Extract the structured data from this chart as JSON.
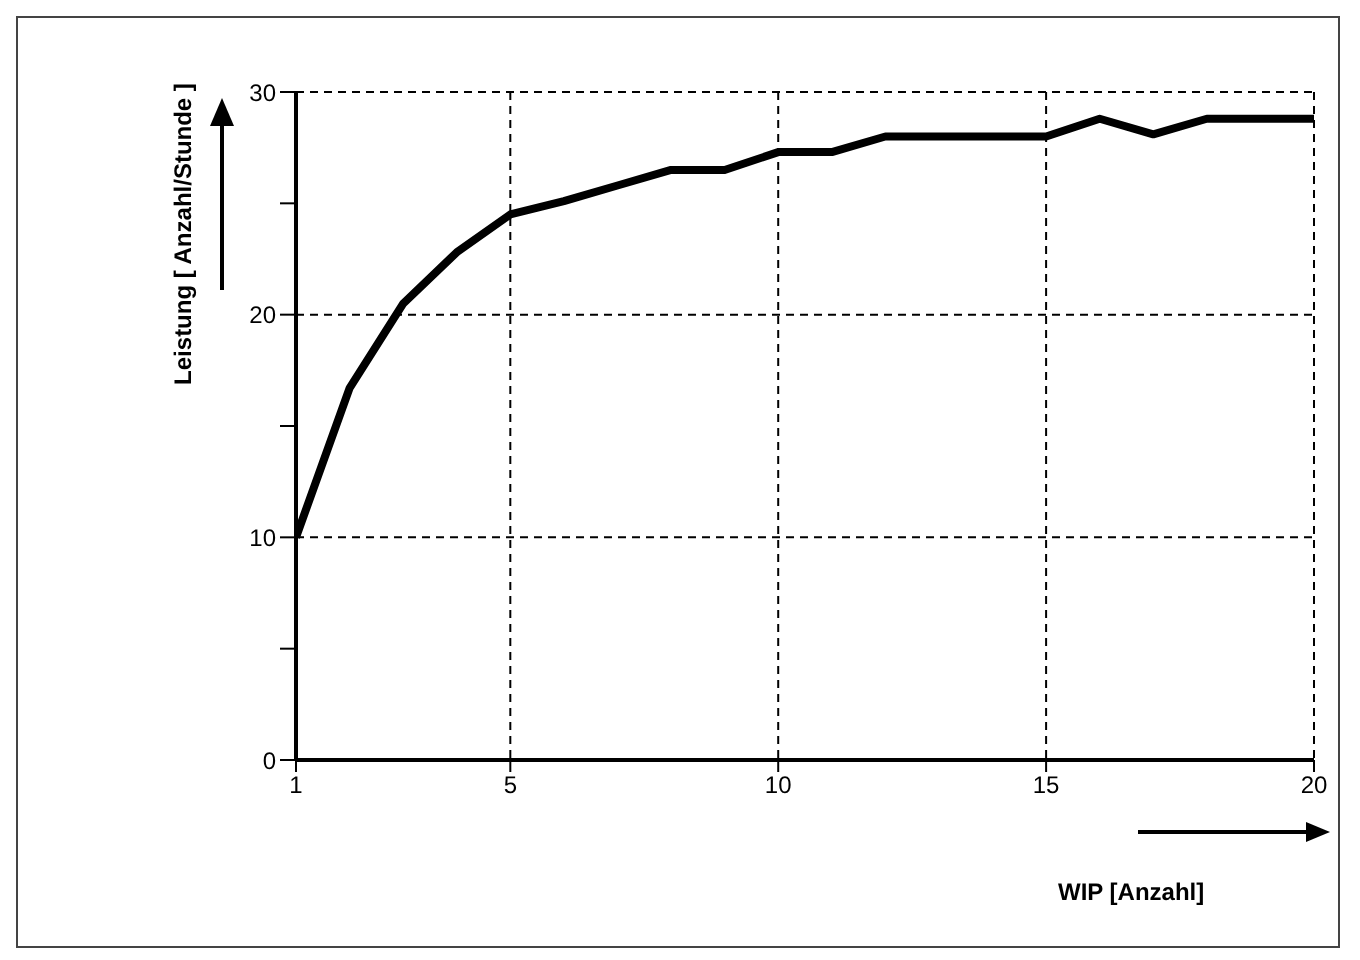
{
  "chart_data": {
    "type": "line",
    "xlabel": "WIP [Anzahl]",
    "ylabel": "Leistung [ Anzahl/Stunde ]",
    "x": [
      1,
      2,
      3,
      4,
      5,
      6,
      7,
      8,
      9,
      10,
      11,
      12,
      13,
      14,
      15,
      16,
      17,
      18,
      19,
      20
    ],
    "series": [
      {
        "color": "#000000",
        "values": [
          10,
          16.7,
          20.5,
          22.8,
          24.5,
          25.1,
          25.8,
          26.5,
          26.5,
          27.3,
          27.3,
          28,
          28,
          28,
          28,
          28.8,
          28.1,
          28.8,
          28.8,
          28.8
        ]
      }
    ],
    "xlim": [
      1,
      20
    ],
    "xticks": [
      1,
      5,
      10,
      15,
      20
    ],
    "ylim": [
      0,
      30
    ],
    "yticks": [
      0,
      {
        "value": 5,
        "label": null
      },
      10,
      {
        "value": 15,
        "label": null
      },
      20,
      {
        "value": 25,
        "label": null
      },
      30
    ],
    "grid": true,
    "legend": false,
    "marker": "none",
    "line_style": "solid"
  }
}
